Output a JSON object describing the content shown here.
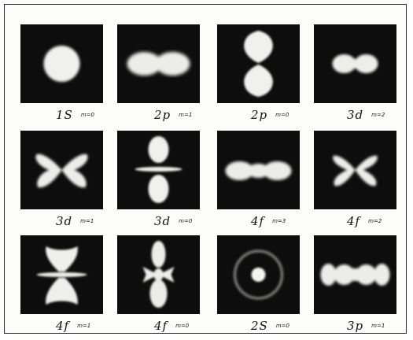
{
  "figure": {
    "panels": [
      {
        "id": "1s-0",
        "orbital": "1S",
        "m": "m=0"
      },
      {
        "id": "2p-1",
        "orbital": "2p",
        "m": "m=1"
      },
      {
        "id": "2p-0",
        "orbital": "2p",
        "m": "m=0"
      },
      {
        "id": "3d-2",
        "orbital": "3d",
        "m": "m=2"
      },
      {
        "id": "3d-1",
        "orbital": "3d",
        "m": "m=1"
      },
      {
        "id": "3d-0",
        "orbital": "3d",
        "m": "m=0"
      },
      {
        "id": "4f-3",
        "orbital": "4f",
        "m": "m=3"
      },
      {
        "id": "4f-2",
        "orbital": "4f",
        "m": "m=2"
      },
      {
        "id": "4f-1",
        "orbital": "4f",
        "m": "m=1"
      },
      {
        "id": "4f-0",
        "orbital": "4f",
        "m": "m=0"
      },
      {
        "id": "2s-0",
        "orbital": "2S",
        "m": "m=0"
      },
      {
        "id": "3p-1",
        "orbital": "3p",
        "m": "m=1"
      }
    ]
  },
  "colors": {
    "panel_background": "#0d0d0d",
    "glow": "#eeeeea",
    "label_ink": "#141414",
    "frame": "#2a2a2a"
  }
}
